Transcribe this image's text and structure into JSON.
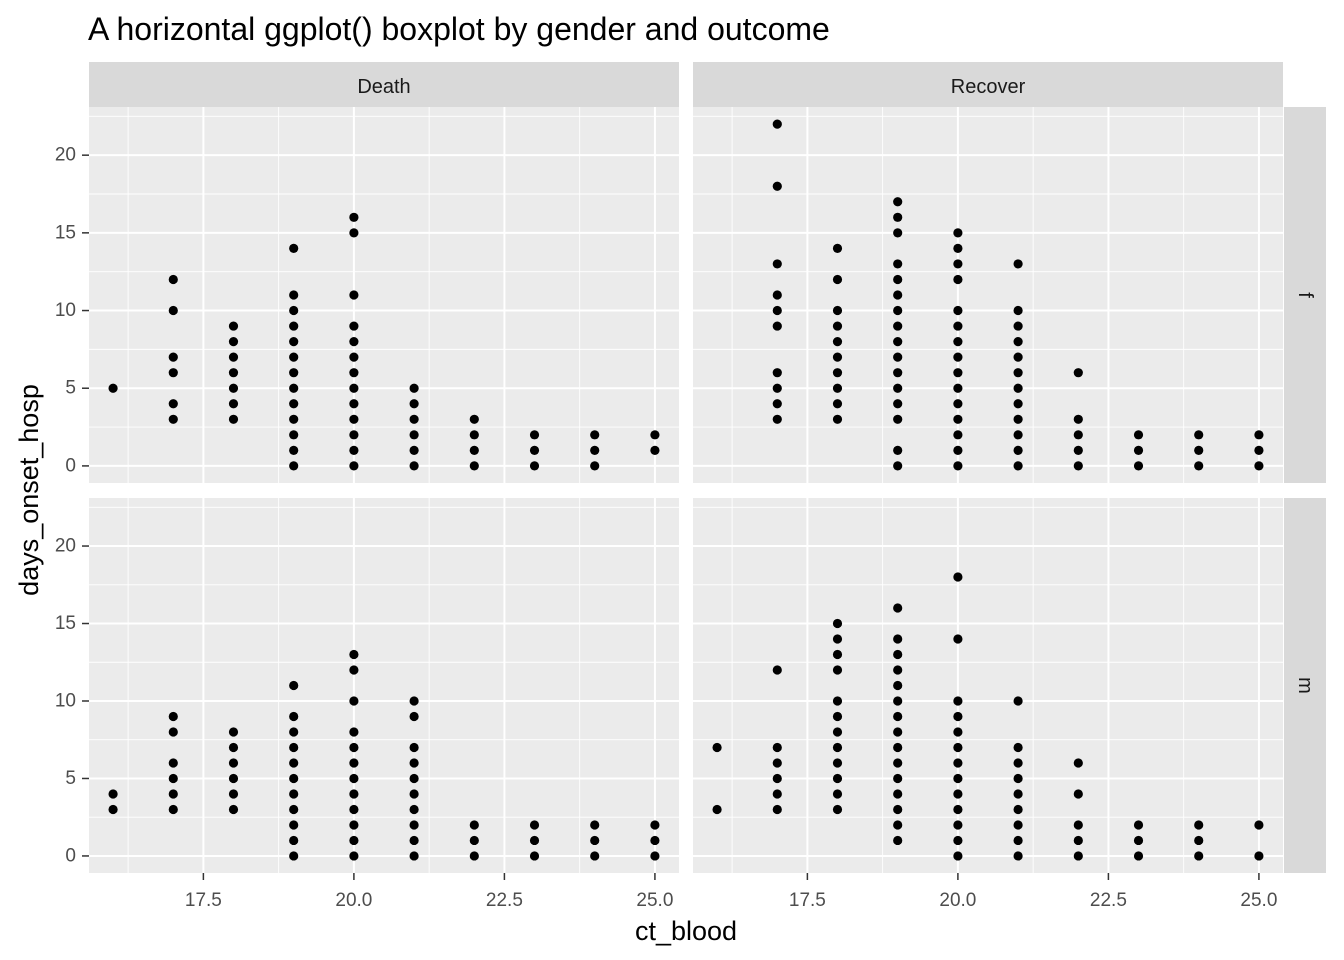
{
  "chart_data": {
    "type": "scatter",
    "title": "A horizontal ggplot() boxplot by gender and outcome",
    "xlabel": "ct_blood",
    "ylabel": "days_onset_hosp",
    "xlim": [
      15.6,
      25.4
    ],
    "ylim": [
      -1.1,
      23.1
    ],
    "x_ticks": [
      "17.5",
      "20.0",
      "22.5",
      "25.0"
    ],
    "y_ticks": [
      "0",
      "5",
      "10",
      "15",
      "20"
    ],
    "grid": true,
    "facet_cols": [
      "Death",
      "Recover"
    ],
    "facet_rows": [
      "f",
      "m"
    ],
    "panels": [
      {
        "col": "Death",
        "row": "f",
        "points": [
          {
            "x": 16,
            "y": [
              5
            ]
          },
          {
            "x": 17,
            "y": [
              3,
              4,
              6,
              7,
              10,
              12
            ]
          },
          {
            "x": 18,
            "y": [
              3,
              4,
              5,
              6,
              7,
              8,
              9
            ]
          },
          {
            "x": 19,
            "y": [
              0,
              1,
              2,
              3,
              4,
              5,
              6,
              7,
              8,
              9,
              10,
              11,
              14
            ]
          },
          {
            "x": 20,
            "y": [
              0,
              1,
              2,
              3,
              4,
              5,
              6,
              7,
              8,
              9,
              11,
              15,
              16
            ]
          },
          {
            "x": 21,
            "y": [
              0,
              1,
              2,
              3,
              4,
              5
            ]
          },
          {
            "x": 22,
            "y": [
              0,
              1,
              2,
              3
            ]
          },
          {
            "x": 23,
            "y": [
              0,
              1,
              2
            ]
          },
          {
            "x": 24,
            "y": [
              0,
              1,
              2
            ]
          },
          {
            "x": 25,
            "y": [
              1,
              2
            ]
          }
        ]
      },
      {
        "col": "Recover",
        "row": "f",
        "points": [
          {
            "x": 17,
            "y": [
              3,
              4,
              5,
              6,
              9,
              10,
              11,
              13,
              18,
              22
            ]
          },
          {
            "x": 18,
            "y": [
              3,
              4,
              5,
              6,
              7,
              8,
              9,
              10,
              12,
              14
            ]
          },
          {
            "x": 19,
            "y": [
              0,
              1,
              3,
              4,
              5,
              6,
              7,
              8,
              9,
              10,
              11,
              12,
              13,
              15,
              16,
              17
            ]
          },
          {
            "x": 20,
            "y": [
              0,
              1,
              2,
              3,
              4,
              5,
              6,
              7,
              8,
              9,
              10,
              12,
              13,
              14,
              15
            ]
          },
          {
            "x": 21,
            "y": [
              0,
              1,
              2,
              3,
              4,
              5,
              6,
              7,
              8,
              9,
              10,
              13
            ]
          },
          {
            "x": 22,
            "y": [
              0,
              1,
              2,
              3,
              6
            ]
          },
          {
            "x": 23,
            "y": [
              0,
              1,
              2
            ]
          },
          {
            "x": 24,
            "y": [
              0,
              1,
              2
            ]
          },
          {
            "x": 25,
            "y": [
              0,
              1,
              2
            ]
          }
        ]
      },
      {
        "col": "Death",
        "row": "m",
        "points": [
          {
            "x": 16,
            "y": [
              3,
              4
            ]
          },
          {
            "x": 17,
            "y": [
              3,
              4,
              5,
              6,
              8,
              9
            ]
          },
          {
            "x": 18,
            "y": [
              3,
              4,
              5,
              6,
              7,
              8
            ]
          },
          {
            "x": 19,
            "y": [
              0,
              1,
              2,
              3,
              4,
              5,
              6,
              7,
              8,
              9,
              11
            ]
          },
          {
            "x": 20,
            "y": [
              0,
              1,
              2,
              3,
              4,
              5,
              6,
              7,
              8,
              10,
              12,
              13
            ]
          },
          {
            "x": 21,
            "y": [
              0,
              1,
              2,
              3,
              4,
              5,
              6,
              7,
              9,
              10
            ]
          },
          {
            "x": 22,
            "y": [
              0,
              1,
              2
            ]
          },
          {
            "x": 23,
            "y": [
              0,
              1,
              2
            ]
          },
          {
            "x": 24,
            "y": [
              0,
              1,
              2
            ]
          },
          {
            "x": 25,
            "y": [
              0,
              1,
              2
            ]
          }
        ]
      },
      {
        "col": "Recover",
        "row": "m",
        "points": [
          {
            "x": 16,
            "y": [
              3,
              7
            ]
          },
          {
            "x": 17,
            "y": [
              3,
              4,
              5,
              6,
              7,
              12
            ]
          },
          {
            "x": 18,
            "y": [
              3,
              4,
              5,
              6,
              7,
              8,
              9,
              10,
              12,
              13,
              14,
              15
            ]
          },
          {
            "x": 19,
            "y": [
              1,
              2,
              3,
              4,
              5,
              6,
              7,
              8,
              9,
              10,
              11,
              12,
              13,
              14,
              16
            ]
          },
          {
            "x": 20,
            "y": [
              0,
              1,
              2,
              3,
              4,
              5,
              6,
              7,
              8,
              9,
              10,
              14,
              18
            ]
          },
          {
            "x": 21,
            "y": [
              0,
              1,
              2,
              3,
              4,
              5,
              6,
              7,
              10
            ]
          },
          {
            "x": 22,
            "y": [
              0,
              1,
              2,
              4,
              6
            ]
          },
          {
            "x": 23,
            "y": [
              0,
              1,
              2
            ]
          },
          {
            "x": 24,
            "y": [
              0,
              1,
              2
            ]
          },
          {
            "x": 25,
            "y": [
              0,
              2
            ]
          }
        ]
      }
    ]
  },
  "colors": {
    "panel_background": "#EBEBEB",
    "strip_background": "#D9D9D9",
    "grid_major": "#FFFFFF",
    "point": "#000000"
  }
}
